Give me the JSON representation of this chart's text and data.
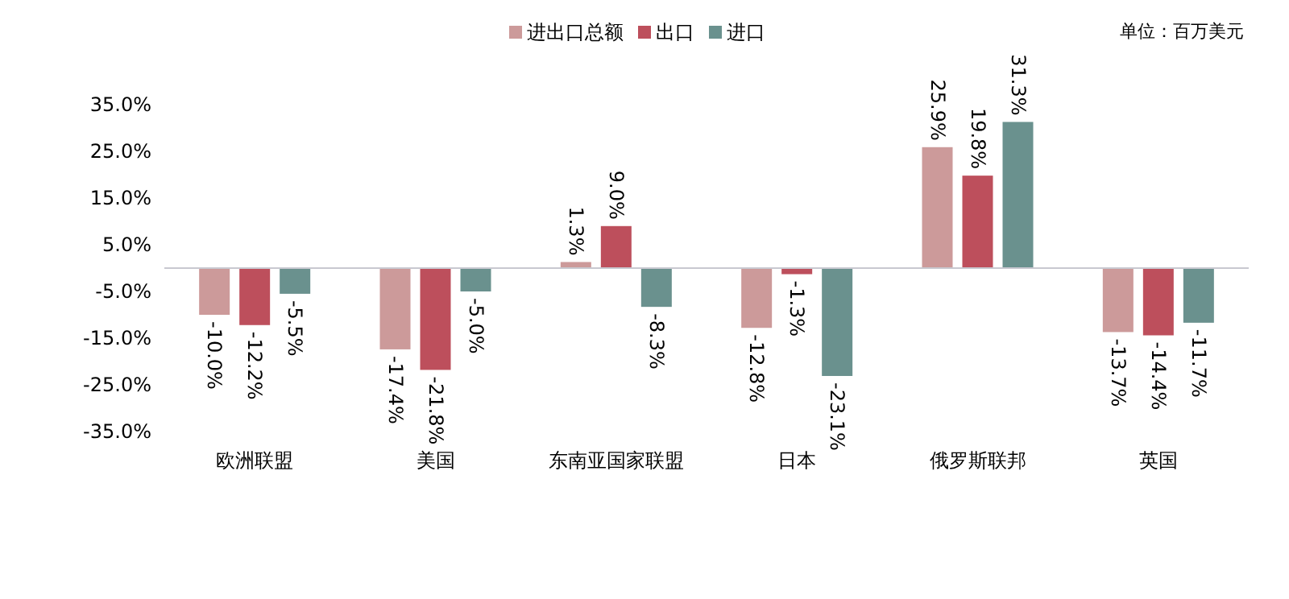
{
  "chart_data": {
    "type": "bar",
    "categories": [
      "欧洲联盟",
      "美国",
      "东南亚国家联盟",
      "日本",
      "俄罗斯联邦",
      "英国"
    ],
    "series": [
      {
        "name": "进出口总额",
        "color": "#cc9a9a",
        "values": [
          -10.0,
          -17.4,
          1.3,
          -12.8,
          25.9,
          -13.7
        ],
        "value_labels": [
          "-10.0%",
          "-17.4%",
          "1.3%",
          "-12.8%",
          "25.9%",
          "-13.7%"
        ]
      },
      {
        "name": "出口",
        "color": "#bd4f5c",
        "values": [
          -12.2,
          -21.8,
          9.0,
          -1.3,
          19.8,
          -14.4
        ],
        "value_labels": [
          "-12.2%",
          "-21.8%",
          "9.0%",
          "-1.3%",
          "19.8%",
          "-14.4%"
        ]
      },
      {
        "name": "进口",
        "color": "#6a918e",
        "values": [
          -5.5,
          -5.0,
          -8.3,
          -23.1,
          31.3,
          -11.7
        ],
        "value_labels": [
          "-5.5%",
          "-5.0%",
          "-8.3%",
          "-23.1%",
          "31.3%",
          "-11.7%"
        ]
      }
    ],
    "ylim": [
      -35,
      35
    ],
    "yticks": [
      {
        "value": 35,
        "label": "35.0%"
      },
      {
        "value": 25,
        "label": "25.0%"
      },
      {
        "value": 15,
        "label": "15.0%"
      },
      {
        "value": 5,
        "label": "5.0%"
      },
      {
        "value": -5,
        "label": "-5.0%"
      },
      {
        "value": -15,
        "label": "-15.0%"
      },
      {
        "value": -25,
        "label": "-25.0%"
      },
      {
        "value": -35,
        "label": "-35.0%"
      }
    ],
    "legend": "top",
    "grid": false,
    "annotations": [
      "单位：百万美元"
    ]
  }
}
